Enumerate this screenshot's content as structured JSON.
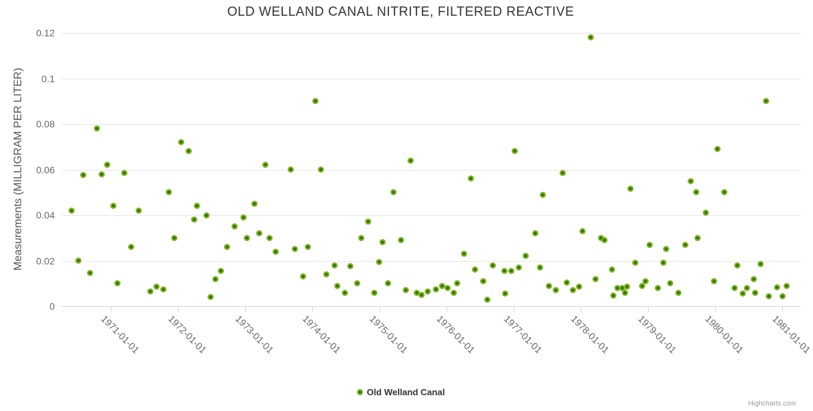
{
  "header": {
    "title": "OLD WELLAND CANAL NITRITE, FILTERED REACTIVE"
  },
  "legend": {
    "label": "Old Welland Canal"
  },
  "credits": {
    "label": "Highcharts.com"
  },
  "colors": {
    "marker_fill": "#7db41e",
    "marker_center": "#2e6c08",
    "gridline": "#e6e6e6",
    "axis_line": "#ccd6eb",
    "axis_label": "#666666",
    "title_text": "#333333",
    "credits_text": "#999999"
  },
  "chart_data": {
    "type": "scatter",
    "title": "OLD WELLAND CANAL NITRITE, FILTERED REACTIVE",
    "xlabel": "",
    "ylabel": "Measurements (MILLIGRAM PER LITER)",
    "grid": "horizontal-only",
    "legend_position": "bottom-center",
    "xlim": [
      1970.265,
      1981.275
    ],
    "ylim": [
      0,
      0.12
    ],
    "x_ticks": [
      {
        "value": 1971,
        "label": "1971-01-01"
      },
      {
        "value": 1972,
        "label": "1972-01-01"
      },
      {
        "value": 1973,
        "label": "1973-01-01"
      },
      {
        "value": 1974,
        "label": "1974-01-01"
      },
      {
        "value": 1975,
        "label": "1975-01-01"
      },
      {
        "value": 1976,
        "label": "1976-01-01"
      },
      {
        "value": 1977,
        "label": "1977-01-01"
      },
      {
        "value": 1978,
        "label": "1978-01-01"
      },
      {
        "value": 1979,
        "label": "1979-01-01"
      },
      {
        "value": 1980,
        "label": "1980-01-01"
      },
      {
        "value": 1981,
        "label": "1981-01-01"
      }
    ],
    "y_ticks": [
      {
        "value": 0,
        "label": "0"
      },
      {
        "value": 0.02,
        "label": "0.02"
      },
      {
        "value": 0.04,
        "label": "0.04"
      },
      {
        "value": 0.06,
        "label": "0.06"
      },
      {
        "value": 0.08,
        "label": "0.08"
      },
      {
        "value": 0.1,
        "label": "0.1"
      },
      {
        "value": 0.12,
        "label": "0.12"
      }
    ],
    "series": [
      {
        "name": "Old Welland Canal",
        "color": "#7db41e",
        "points": [
          [
            1970.41,
            0.042
          ],
          [
            1970.52,
            0.02
          ],
          [
            1970.59,
            0.0575
          ],
          [
            1970.69,
            0.0145
          ],
          [
            1970.79,
            0.078
          ],
          [
            1970.86,
            0.058
          ],
          [
            1970.94,
            0.062
          ],
          [
            1971.04,
            0.044
          ],
          [
            1971.1,
            0.01
          ],
          [
            1971.2,
            0.0585
          ],
          [
            1971.3,
            0.026
          ],
          [
            1971.41,
            0.042
          ],
          [
            1971.59,
            0.0065
          ],
          [
            1971.68,
            0.0085
          ],
          [
            1971.78,
            0.0075
          ],
          [
            1971.86,
            0.05
          ],
          [
            1971.94,
            0.03
          ],
          [
            1972.05,
            0.072
          ],
          [
            1972.16,
            0.068
          ],
          [
            1972.24,
            0.038
          ],
          [
            1972.28,
            0.044
          ],
          [
            1972.42,
            0.04
          ],
          [
            1972.48,
            0.004
          ],
          [
            1972.56,
            0.012
          ],
          [
            1972.64,
            0.0155
          ],
          [
            1972.73,
            0.026
          ],
          [
            1972.84,
            0.035
          ],
          [
            1972.97,
            0.039
          ],
          [
            1973.03,
            0.03
          ],
          [
            1973.14,
            0.045
          ],
          [
            1973.21,
            0.032
          ],
          [
            1973.3,
            0.062
          ],
          [
            1973.36,
            0.03
          ],
          [
            1973.45,
            0.024
          ],
          [
            1973.68,
            0.06
          ],
          [
            1973.74,
            0.025
          ],
          [
            1973.86,
            0.013
          ],
          [
            1973.93,
            0.026
          ],
          [
            1974.05,
            0.09
          ],
          [
            1974.13,
            0.06
          ],
          [
            1974.21,
            0.014
          ],
          [
            1974.33,
            0.018
          ],
          [
            1974.37,
            0.009
          ],
          [
            1974.48,
            0.006
          ],
          [
            1974.57,
            0.0175
          ],
          [
            1974.67,
            0.01
          ],
          [
            1974.73,
            0.03
          ],
          [
            1974.83,
            0.037
          ],
          [
            1974.92,
            0.006
          ],
          [
            1974.99,
            0.0195
          ],
          [
            1975.05,
            0.028
          ],
          [
            1975.13,
            0.01
          ],
          [
            1975.21,
            0.05
          ],
          [
            1975.32,
            0.029
          ],
          [
            1975.39,
            0.007
          ],
          [
            1975.46,
            0.064
          ],
          [
            1975.56,
            0.006
          ],
          [
            1975.63,
            0.005
          ],
          [
            1975.72,
            0.0065
          ],
          [
            1975.84,
            0.0075
          ],
          [
            1975.93,
            0.009
          ],
          [
            1976.01,
            0.008
          ],
          [
            1976.11,
            0.006
          ],
          [
            1976.16,
            0.01
          ],
          [
            1976.26,
            0.023
          ],
          [
            1976.36,
            0.056
          ],
          [
            1976.42,
            0.016
          ],
          [
            1976.55,
            0.011
          ],
          [
            1976.61,
            0.003
          ],
          [
            1976.69,
            0.018
          ],
          [
            1976.86,
            0.0155
          ],
          [
            1976.87,
            0.0055
          ],
          [
            1976.96,
            0.0155
          ],
          [
            1977.01,
            0.068
          ],
          [
            1977.08,
            0.017
          ],
          [
            1977.18,
            0.022
          ],
          [
            1977.32,
            0.032
          ],
          [
            1977.39,
            0.017
          ],
          [
            1977.43,
            0.049
          ],
          [
            1977.53,
            0.009
          ],
          [
            1977.63,
            0.007
          ],
          [
            1977.73,
            0.0585
          ],
          [
            1977.79,
            0.0105
          ],
          [
            1977.88,
            0.007
          ],
          [
            1977.97,
            0.0085
          ],
          [
            1978.02,
            0.033
          ],
          [
            1978.15,
            0.118
          ],
          [
            1978.22,
            0.012
          ],
          [
            1978.3,
            0.03
          ],
          [
            1978.35,
            0.029
          ],
          [
            1978.46,
            0.016
          ],
          [
            1978.48,
            0.0048
          ],
          [
            1978.55,
            0.008
          ],
          [
            1978.62,
            0.008
          ],
          [
            1978.66,
            0.006
          ],
          [
            1978.69,
            0.0085
          ],
          [
            1978.74,
            0.0515
          ],
          [
            1978.81,
            0.019
          ],
          [
            1978.91,
            0.009
          ],
          [
            1978.96,
            0.011
          ],
          [
            1979.02,
            0.027
          ],
          [
            1979.15,
            0.008
          ],
          [
            1979.23,
            0.019
          ],
          [
            1979.27,
            0.025
          ],
          [
            1979.33,
            0.01
          ],
          [
            1979.45,
            0.006
          ],
          [
            1979.56,
            0.027
          ],
          [
            1979.64,
            0.055
          ],
          [
            1979.72,
            0.05
          ],
          [
            1979.74,
            0.03
          ],
          [
            1979.86,
            0.041
          ],
          [
            1979.98,
            0.011
          ],
          [
            1980.04,
            0.069
          ],
          [
            1980.14,
            0.05
          ],
          [
            1980.29,
            0.008
          ],
          [
            1980.33,
            0.018
          ],
          [
            1980.41,
            0.0055
          ],
          [
            1980.47,
            0.008
          ],
          [
            1980.58,
            0.012
          ],
          [
            1980.6,
            0.006
          ],
          [
            1980.68,
            0.0185
          ],
          [
            1980.76,
            0.09
          ],
          [
            1980.8,
            0.0045
          ],
          [
            1980.92,
            0.0083
          ],
          [
            1981.0,
            0.0043
          ],
          [
            1981.07,
            0.009
          ]
        ]
      }
    ]
  }
}
